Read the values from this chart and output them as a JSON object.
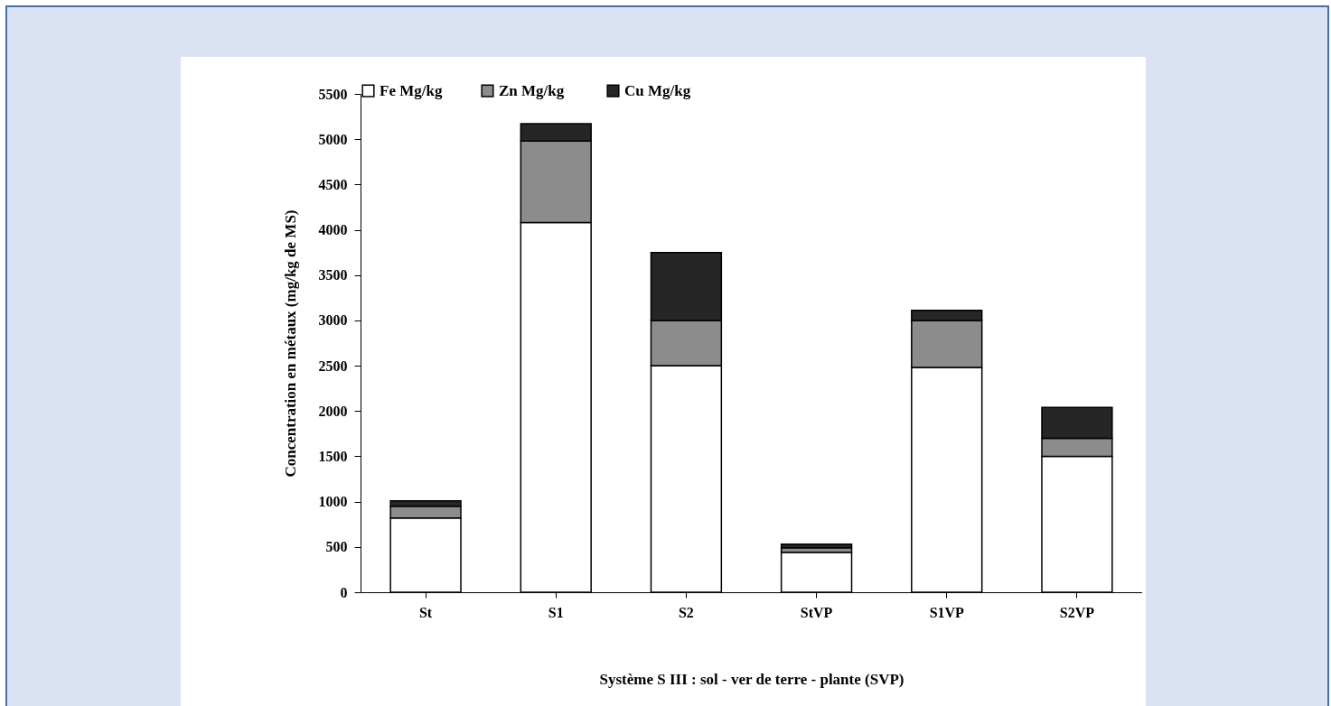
{
  "chart_data": {
    "type": "bar",
    "stacked": true,
    "xlabel": "Système S III : sol - ver de terre - plante  (SVP)",
    "ylabel": "Concentration en métaux (mg/kg de MS)",
    "categories": [
      "St",
      "S1",
      "S2",
      "StVP",
      "S1VP",
      "S2VP"
    ],
    "series": [
      {
        "name": "Fe Mg/kg",
        "color": "#ffffff",
        "values": [
          820,
          4080,
          2500,
          440,
          2480,
          1500
        ]
      },
      {
        "name": "Zn  Mg/kg",
        "color": "#8c8c8c",
        "values": [
          130,
          900,
          500,
          50,
          520,
          200
        ]
      },
      {
        "name": "Cu  Mg/kg",
        "color": "#262626",
        "values": [
          60,
          190,
          750,
          40,
          110,
          340
        ]
      }
    ],
    "ylim": [
      0,
      5500
    ],
    "yticks": [
      0,
      500,
      1000,
      1500,
      2000,
      2500,
      3000,
      3500,
      4000,
      4500,
      5000,
      5500
    ],
    "grid": false,
    "legend": "top"
  }
}
